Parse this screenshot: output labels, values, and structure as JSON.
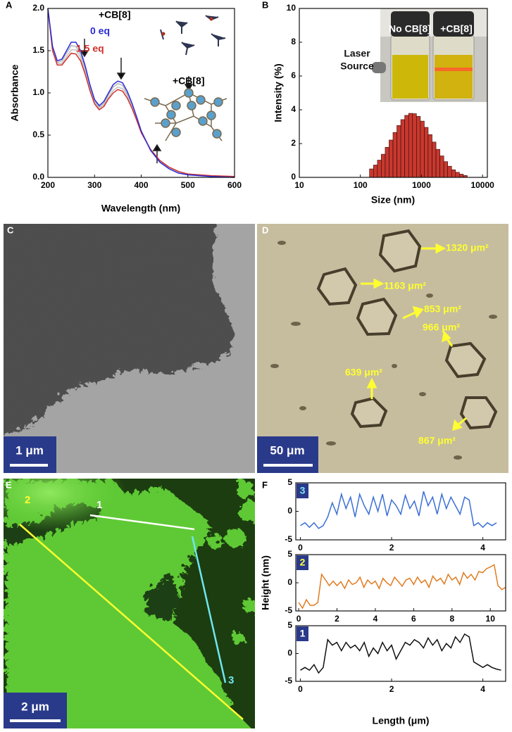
{
  "chart_data": [
    {
      "type": "line",
      "panel_label": "A",
      "xlabel": "Wavelength (nm)",
      "ylabel": "Absorbance",
      "x": [
        200,
        210,
        220,
        230,
        240,
        250,
        260,
        270,
        280,
        290,
        300,
        310,
        320,
        330,
        340,
        350,
        360,
        370,
        380,
        390,
        400,
        420,
        440,
        460,
        480,
        500,
        550,
        600
      ],
      "series": [
        {
          "color": "#b4b4b4",
          "values": [
            2.0,
            1.53,
            1.36,
            1.38,
            1.47,
            1.56,
            1.55,
            1.46,
            1.29,
            1.08,
            0.9,
            0.83,
            0.88,
            0.98,
            1.07,
            1.11,
            1.09,
            0.99,
            0.86,
            0.71,
            0.54,
            0.32,
            0.19,
            0.11,
            0.06,
            0.03,
            0.01,
            0
          ]
        },
        {
          "color": "#c4c4c4",
          "values": [
            2.0,
            1.52,
            1.35,
            1.35,
            1.43,
            1.51,
            1.51,
            1.42,
            1.25,
            1.05,
            0.89,
            0.82,
            0.86,
            0.95,
            1.03,
            1.07,
            1.05,
            0.97,
            0.84,
            0.69,
            0.54,
            0.33,
            0.19,
            0.11,
            0.06,
            0.04,
            0.02,
            0.01
          ]
        },
        {
          "name": "1.5 eq",
          "color": "#d0312d",
          "values": [
            2.0,
            1.5,
            1.33,
            1.33,
            1.4,
            1.47,
            1.46,
            1.38,
            1.22,
            1.03,
            0.87,
            0.8,
            0.84,
            0.93,
            1.0,
            1.04,
            1.02,
            0.94,
            0.82,
            0.68,
            0.53,
            0.33,
            0.2,
            0.12,
            0.07,
            0.04,
            0.02,
            0.01
          ]
        },
        {
          "name": "0 eq",
          "color": "#2b2bd8",
          "values": [
            2.0,
            1.55,
            1.38,
            1.4,
            1.5,
            1.6,
            1.6,
            1.5,
            1.32,
            1.1,
            0.92,
            0.85,
            0.9,
            1.0,
            1.1,
            1.14,
            1.12,
            1.02,
            0.88,
            0.72,
            0.55,
            0.32,
            0.18,
            0.1,
            0.05,
            0.03,
            0.01,
            0
          ]
        }
      ],
      "xlim": [
        200,
        600
      ],
      "ylim": [
        0,
        2
      ],
      "xticks": [
        200,
        300,
        400,
        500,
        600
      ],
      "yticks": [
        {
          "value": 0,
          "label": "0.0"
        },
        0.5,
        {
          "value": 1,
          "label": "1.0"
        },
        1.5,
        {
          "value": 2,
          "label": "2.0"
        }
      ],
      "annotations": [
        "+CB[8]",
        "+CB[8]"
      ]
    },
    {
      "type": "histogram",
      "panel_label": "B",
      "xlabel": "Size (nm)",
      "ylabel": "Intensity (%)",
      "log_x": true,
      "color": "#c8382e",
      "bins": [
        141,
        164,
        190,
        220,
        255,
        295,
        342,
        396,
        459,
        532,
        617,
        714,
        828,
        959,
        1112,
        1288,
        1493,
        1730,
        2004,
        2323,
        2692,
        3119,
        3614,
        4188,
        4853,
        5623
      ],
      "values": [
        0.5,
        0.73,
        1.02,
        1.37,
        1.78,
        2.21,
        2.66,
        3.07,
        3.42,
        3.67,
        3.79,
        3.77,
        3.61,
        3.33,
        2.96,
        2.53,
        2.09,
        1.66,
        1.27,
        0.93,
        0.66,
        0.45,
        0.3,
        0.19,
        0.11
      ],
      "xlim": [
        10,
        12000
      ],
      "xticks": [
        10,
        100,
        1000,
        10000
      ],
      "ylim": [
        0,
        10
      ],
      "yticks": [
        0,
        2,
        4,
        6,
        8,
        10
      ],
      "inset_labels": [
        "No CB[8]",
        "+CB[8]",
        "Laser",
        "Source"
      ]
    },
    {
      "type": "line",
      "panel_label": "F",
      "x": [
        0,
        0.1,
        0.2,
        0.3,
        0.4,
        0.5,
        0.6,
        0.7,
        0.8,
        0.9,
        1.0,
        1.1,
        1.2,
        1.3,
        1.4,
        1.5,
        1.6,
        1.7,
        1.8,
        1.9,
        2.0,
        2.1,
        2.2,
        2.3,
        2.4,
        2.5,
        2.6,
        2.7,
        2.8,
        2.9,
        3.0,
        3.1,
        3.2,
        3.3,
        3.4,
        3.5,
        3.6,
        3.7,
        3.8,
        3.9,
        4.0,
        4.1,
        4.2,
        4.3
      ],
      "series": [
        {
          "name": "3",
          "color": "#3b6fd6",
          "label_color": "#7fe8f0",
          "values": [
            -2.5,
            -2,
            -2.8,
            -2,
            -3,
            -2.5,
            -1,
            1.5,
            -0.5,
            3,
            0.5,
            2.5,
            -1,
            3,
            1,
            -0.5,
            2.5,
            0,
            3,
            -0.8,
            2,
            1,
            -0.5,
            2.8,
            0.5,
            1.8,
            -0.8,
            3.5,
            1,
            2.5,
            -0.5,
            3,
            0.5,
            2.5,
            1,
            -0.5,
            2.5,
            2,
            -2.5,
            -2,
            -2.8,
            -2,
            -2.5,
            -2
          ]
        }
      ],
      "xlim": [
        -0.1,
        4.5
      ],
      "ylim": [
        -5,
        5
      ],
      "xticks": [
        0,
        2,
        4
      ],
      "yticks": [
        -5,
        0,
        5
      ]
    },
    {
      "type": "line",
      "ylabel": "Height (nm)",
      "x": [
        0,
        0.2,
        0.4,
        0.6,
        0.8,
        1.0,
        1.2,
        1.4,
        1.6,
        1.8,
        2.0,
        2.2,
        2.4,
        2.6,
        2.8,
        3.0,
        3.2,
        3.4,
        3.6,
        3.8,
        4.0,
        4.2,
        4.4,
        4.6,
        4.8,
        5.0,
        5.2,
        5.4,
        5.6,
        5.8,
        6.0,
        6.2,
        6.4,
        6.6,
        6.8,
        7.0,
        7.2,
        7.4,
        7.6,
        7.8,
        8.0,
        8.2,
        8.4,
        8.6,
        8.8,
        9.0,
        9.2,
        9.4,
        9.6,
        9.8,
        10.0,
        10.2,
        10.4,
        10.6,
        10.8
      ],
      "series": [
        {
          "name": "2",
          "color": "#e07b20",
          "label_color": "#ffff40",
          "values": [
            -3.5,
            -4.5,
            -3,
            -4,
            -4,
            -3.5,
            1.5,
            0.5,
            -0.5,
            0.3,
            -0.5,
            0.2,
            -1,
            0.5,
            -0.3,
            0,
            1,
            -0.8,
            0.5,
            -0.2,
            0.3,
            -1,
            0.8,
            0,
            -0.5,
            1,
            0.2,
            -0.6,
            0.5,
            0.8,
            -0.3,
            1,
            0,
            0.5,
            -0.8,
            1.2,
            0.3,
            0.8,
            -0.2,
            1.5,
            0.5,
            1,
            -0.3,
            1.8,
            0.8,
            1.5,
            0.5,
            2,
            1.8,
            2.5,
            2.8,
            3.2,
            -0.5,
            -1.2,
            -0.8
          ]
        }
      ],
      "xlim": [
        -0.15,
        10.8
      ],
      "ylim": [
        -5,
        5
      ],
      "xticks": [
        0,
        2,
        4,
        6,
        8,
        10
      ],
      "yticks": [
        -5,
        0,
        5
      ]
    },
    {
      "type": "line",
      "xlabel": "Length (μm)",
      "x": [
        0,
        0.1,
        0.2,
        0.3,
        0.4,
        0.5,
        0.6,
        0.7,
        0.8,
        0.9,
        1.0,
        1.1,
        1.2,
        1.3,
        1.4,
        1.5,
        1.6,
        1.7,
        1.8,
        1.9,
        2.0,
        2.1,
        2.2,
        2.3,
        2.4,
        2.5,
        2.6,
        2.7,
        2.8,
        2.9,
        3.0,
        3.1,
        3.2,
        3.3,
        3.4,
        3.5,
        3.6,
        3.7,
        3.8,
        3.9,
        4.0,
        4.1,
        4.2,
        4.3,
        4.4
      ],
      "series": [
        {
          "name": "1",
          "color": "#111111",
          "label_color": "#ffffff",
          "values": [
            -3,
            -2.5,
            -3,
            -2,
            -3.5,
            -2.5,
            2.5,
            1.5,
            2,
            0.5,
            2,
            1,
            1.5,
            0.5,
            2,
            -0.5,
            1,
            0,
            2,
            0.5,
            1.5,
            -1,
            0.5,
            2,
            1.5,
            2.5,
            2,
            1,
            2.8,
            1.5,
            2.5,
            0.5,
            1.8,
            1,
            3,
            2,
            3.5,
            3,
            -1.5,
            -2,
            -2.5,
            -2,
            -2.5,
            -2.8,
            -3
          ]
        }
      ],
      "xlim": [
        -0.1,
        4.5
      ],
      "ylim": [
        -5,
        5
      ],
      "xticks": [
        0,
        2,
        4
      ],
      "yticks": [
        -5,
        0,
        5
      ]
    }
  ],
  "micrographs": {
    "C": {
      "panel_label": "C",
      "scale_bar": "1 μm"
    },
    "D": {
      "panel_label": "D",
      "scale_bar": "50 μm",
      "areas": [
        "1320 μm²",
        "1163 μm²",
        "853 μm²",
        "966 μm²",
        "639 μm²",
        "867 μm²"
      ]
    },
    "E": {
      "panel_label": "E",
      "scale_bar": "2 μm",
      "line_labels": [
        "1",
        "2",
        "3"
      ]
    }
  }
}
